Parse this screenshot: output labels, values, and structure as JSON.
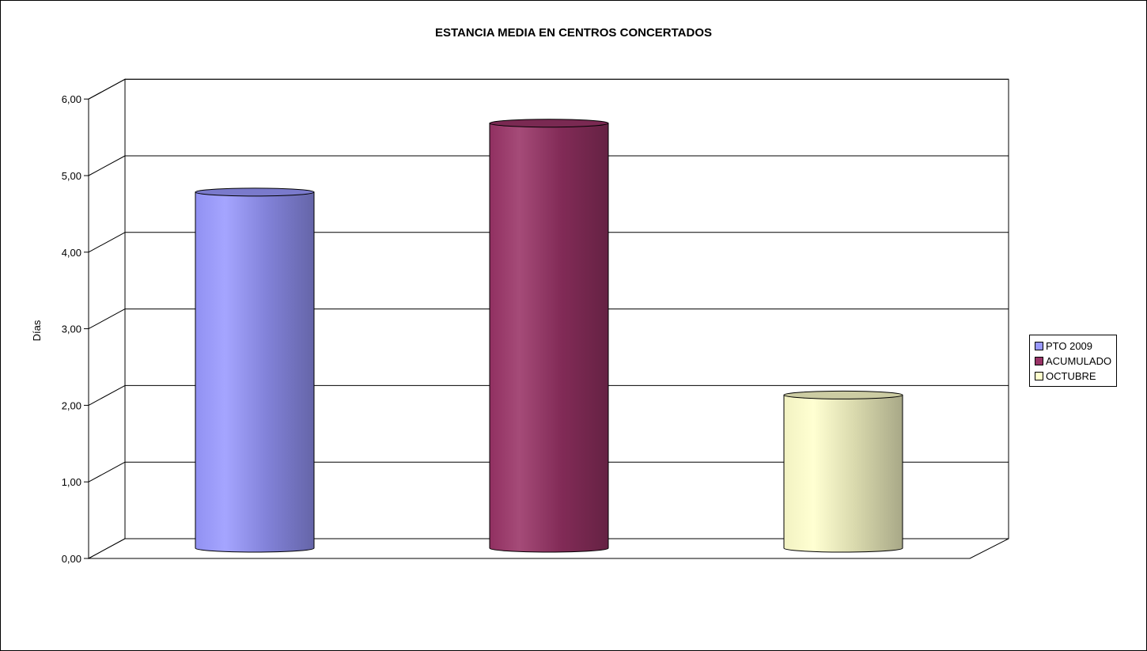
{
  "chart_data": {
    "type": "bar",
    "title": "ESTANCIA MEDIA EN CENTROS CONCERTADOS",
    "ylabel": "Días",
    "xlabel": "",
    "ylim": [
      0,
      6
    ],
    "y_ticks": [
      "0,00",
      "1,00",
      "2,00",
      "3,00",
      "4,00",
      "5,00",
      "6,00"
    ],
    "grid": true,
    "bar_shape": "cylinder-3d",
    "legend_position": "right",
    "series": [
      {
        "name": "PTO 2009",
        "value": 4.65,
        "color": "#9999ff"
      },
      {
        "name": "ACUMULADO",
        "value": 5.55,
        "color": "#993366"
      },
      {
        "name": "OCTUBRE",
        "value": 2.0,
        "color": "#ffffcc"
      }
    ]
  }
}
